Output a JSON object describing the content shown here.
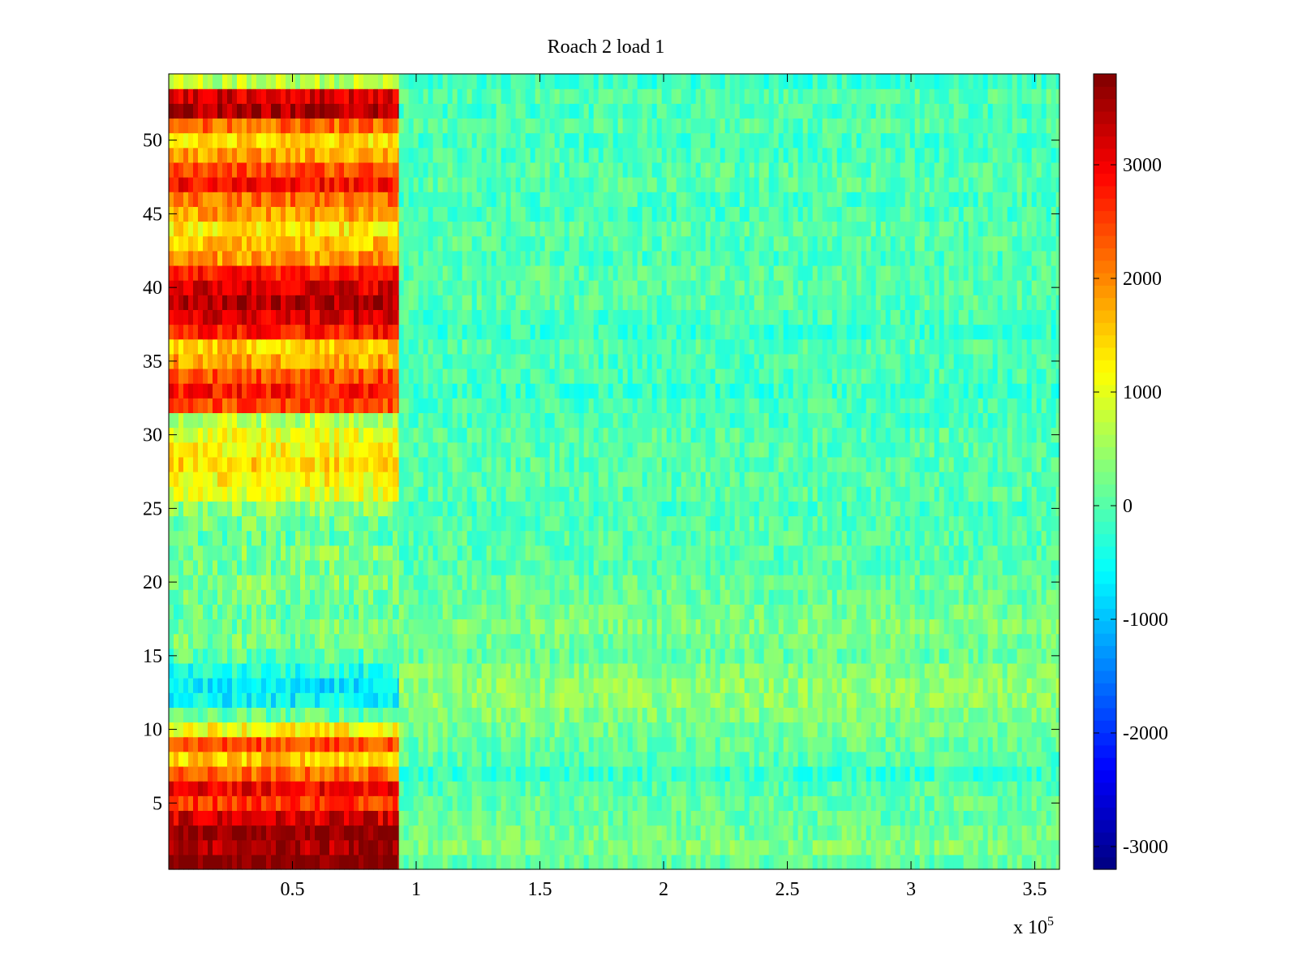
{
  "chart_data": {
    "type": "heatmap",
    "title": "Roach 2 load 1",
    "xlabel": "",
    "ylabel": "",
    "colormap": "jet",
    "x_range": [
      0,
      360000
    ],
    "y_range": [
      0.5,
      54.5
    ],
    "rows": 54,
    "x_exponent_label": "x 10",
    "x_exponent_sup": "5",
    "x_ticks": [
      {
        "value": 50000,
        "label": "0.5"
      },
      {
        "value": 100000,
        "label": "1"
      },
      {
        "value": 150000,
        "label": "1.5"
      },
      {
        "value": 200000,
        "label": "2"
      },
      {
        "value": 250000,
        "label": "2.5"
      },
      {
        "value": 300000,
        "label": "3"
      },
      {
        "value": 350000,
        "label": "3.5"
      }
    ],
    "y_ticks": [
      {
        "value": 5,
        "label": "5"
      },
      {
        "value": 10,
        "label": "10"
      },
      {
        "value": 15,
        "label": "15"
      },
      {
        "value": 20,
        "label": "20"
      },
      {
        "value": 25,
        "label": "25"
      },
      {
        "value": 30,
        "label": "30"
      },
      {
        "value": 35,
        "label": "35"
      },
      {
        "value": 40,
        "label": "40"
      },
      {
        "value": 45,
        "label": "45"
      },
      {
        "value": 50,
        "label": "50"
      }
    ],
    "colorbar": {
      "clim": [
        -3200,
        3800
      ],
      "ticks": [
        {
          "value": 3000,
          "label": "3000"
        },
        {
          "value": 2000,
          "label": "2000"
        },
        {
          "value": 1000,
          "label": "1000"
        },
        {
          "value": 0,
          "label": "0"
        },
        {
          "value": -1000,
          "label": "-1000"
        },
        {
          "value": -2000,
          "label": "-2000"
        },
        {
          "value": -3000,
          "label": "-3000"
        }
      ]
    },
    "x_split": 93000,
    "segment_means_early": [
      3800,
      3500,
      3800,
      3200,
      2600,
      3000,
      2200,
      1500,
      2400,
      1200,
      100,
      -600,
      -700,
      -400,
      0,
      200,
      200,
      100,
      200,
      300,
      200,
      300,
      100,
      200,
      400,
      1000,
      1200,
      1400,
      1200,
      1000,
      700,
      2400,
      2800,
      2400,
      1800,
      1500,
      2800,
      3200,
      3500,
      3200,
      2800,
      1900,
      1600,
      1300,
      1800,
      2200,
      2900,
      2400,
      1800,
      1400,
      2200,
      3500,
      3200,
      700
    ],
    "segment_means_late": [
      100,
      300,
      200,
      100,
      100,
      0,
      -200,
      0,
      100,
      200,
      300,
      400,
      400,
      300,
      100,
      200,
      300,
      200,
      100,
      100,
      0,
      0,
      0,
      0,
      -100,
      0,
      0,
      0,
      0,
      0,
      -100,
      -100,
      -200,
      -100,
      -100,
      0,
      -200,
      -100,
      0,
      0,
      0,
      -100,
      0,
      0,
      -100,
      -100,
      0,
      0,
      -100,
      -100,
      0,
      -100,
      0,
      -200
    ]
  }
}
